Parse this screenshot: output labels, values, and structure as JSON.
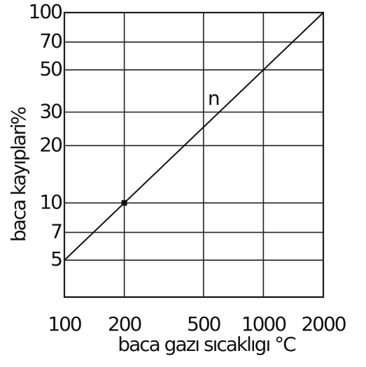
{
  "chart_data": {
    "type": "line",
    "xlabel": "baca gazı sıcaklıgı  °C",
    "ylabel": "baca kayıplari%",
    "x": [
      100,
      2000
    ],
    "series": [
      {
        "color": "#111111",
        "values": [
          5,
          100
        ]
      }
    ],
    "markers": {
      "x": [
        200
      ],
      "values": [
        10
      ]
    },
    "annotations": [
      {
        "text": "n",
        "x": 560,
        "y": 35
      }
    ],
    "xlim": [
      100,
      2000
    ],
    "xticks": [
      100,
      200,
      500,
      1000,
      2000
    ],
    "ylim": [
      3.2,
      100
    ],
    "yticks": [
      5,
      7,
      10,
      20,
      30,
      50,
      70,
      100
    ],
    "log_x": true,
    "log_y": true,
    "grid": true
  }
}
